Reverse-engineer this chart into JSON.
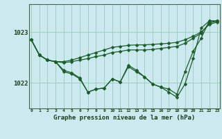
{
  "title": "Graphe pression niveau de la mer (hPa)",
  "background_color": "#cde9f0",
  "grid_color": "#9ecfbf",
  "line_color": "#1a5c2a",
  "x_labels": [
    "0",
    "1",
    "2",
    "3",
    "4",
    "5",
    "6",
    "7",
    "8",
    "9",
    "10",
    "11",
    "12",
    "13",
    "14",
    "15",
    "16",
    "17",
    "18",
    "19",
    "20",
    "21",
    "22",
    "23"
  ],
  "y_ticks": [
    1022,
    1023
  ],
  "ylim": [
    1021.5,
    1023.55
  ],
  "xlim": [
    -0.3,
    23.3
  ],
  "series": [
    [
      1022.85,
      1022.55,
      1022.45,
      1022.42,
      1022.42,
      1022.45,
      1022.5,
      1022.55,
      1022.6,
      1022.65,
      1022.7,
      1022.72,
      1022.74,
      1022.75,
      1022.75,
      1022.76,
      1022.77,
      1022.78,
      1022.8,
      1022.85,
      1022.92,
      1023.0,
      1023.15,
      1023.2
    ],
    [
      1022.85,
      1022.55,
      1022.45,
      1022.42,
      1022.4,
      1022.42,
      1022.45,
      1022.48,
      1022.52,
      1022.55,
      1022.6,
      1022.62,
      1022.65,
      1022.65,
      1022.65,
      1022.66,
      1022.68,
      1022.7,
      1022.72,
      1022.78,
      1022.88,
      1022.98,
      1023.18,
      1023.22
    ],
    [
      1022.85,
      1022.55,
      1022.45,
      1022.42,
      1022.25,
      1022.2,
      1022.1,
      1021.82,
      1021.88,
      1021.9,
      1022.08,
      1022.02,
      1022.32,
      1022.22,
      1022.12,
      1021.98,
      1021.92,
      1021.88,
      1021.78,
      1022.22,
      1022.62,
      1022.88,
      1023.22,
      1023.22
    ],
    [
      1022.85,
      1022.55,
      1022.45,
      1022.42,
      1022.22,
      1022.18,
      1022.08,
      1021.82,
      1021.88,
      1021.9,
      1022.08,
      1022.02,
      1022.35,
      1022.25,
      1022.12,
      1021.98,
      1021.92,
      1021.82,
      1021.72,
      1021.98,
      1022.48,
      1023.08,
      1023.22,
      1023.22
    ]
  ]
}
